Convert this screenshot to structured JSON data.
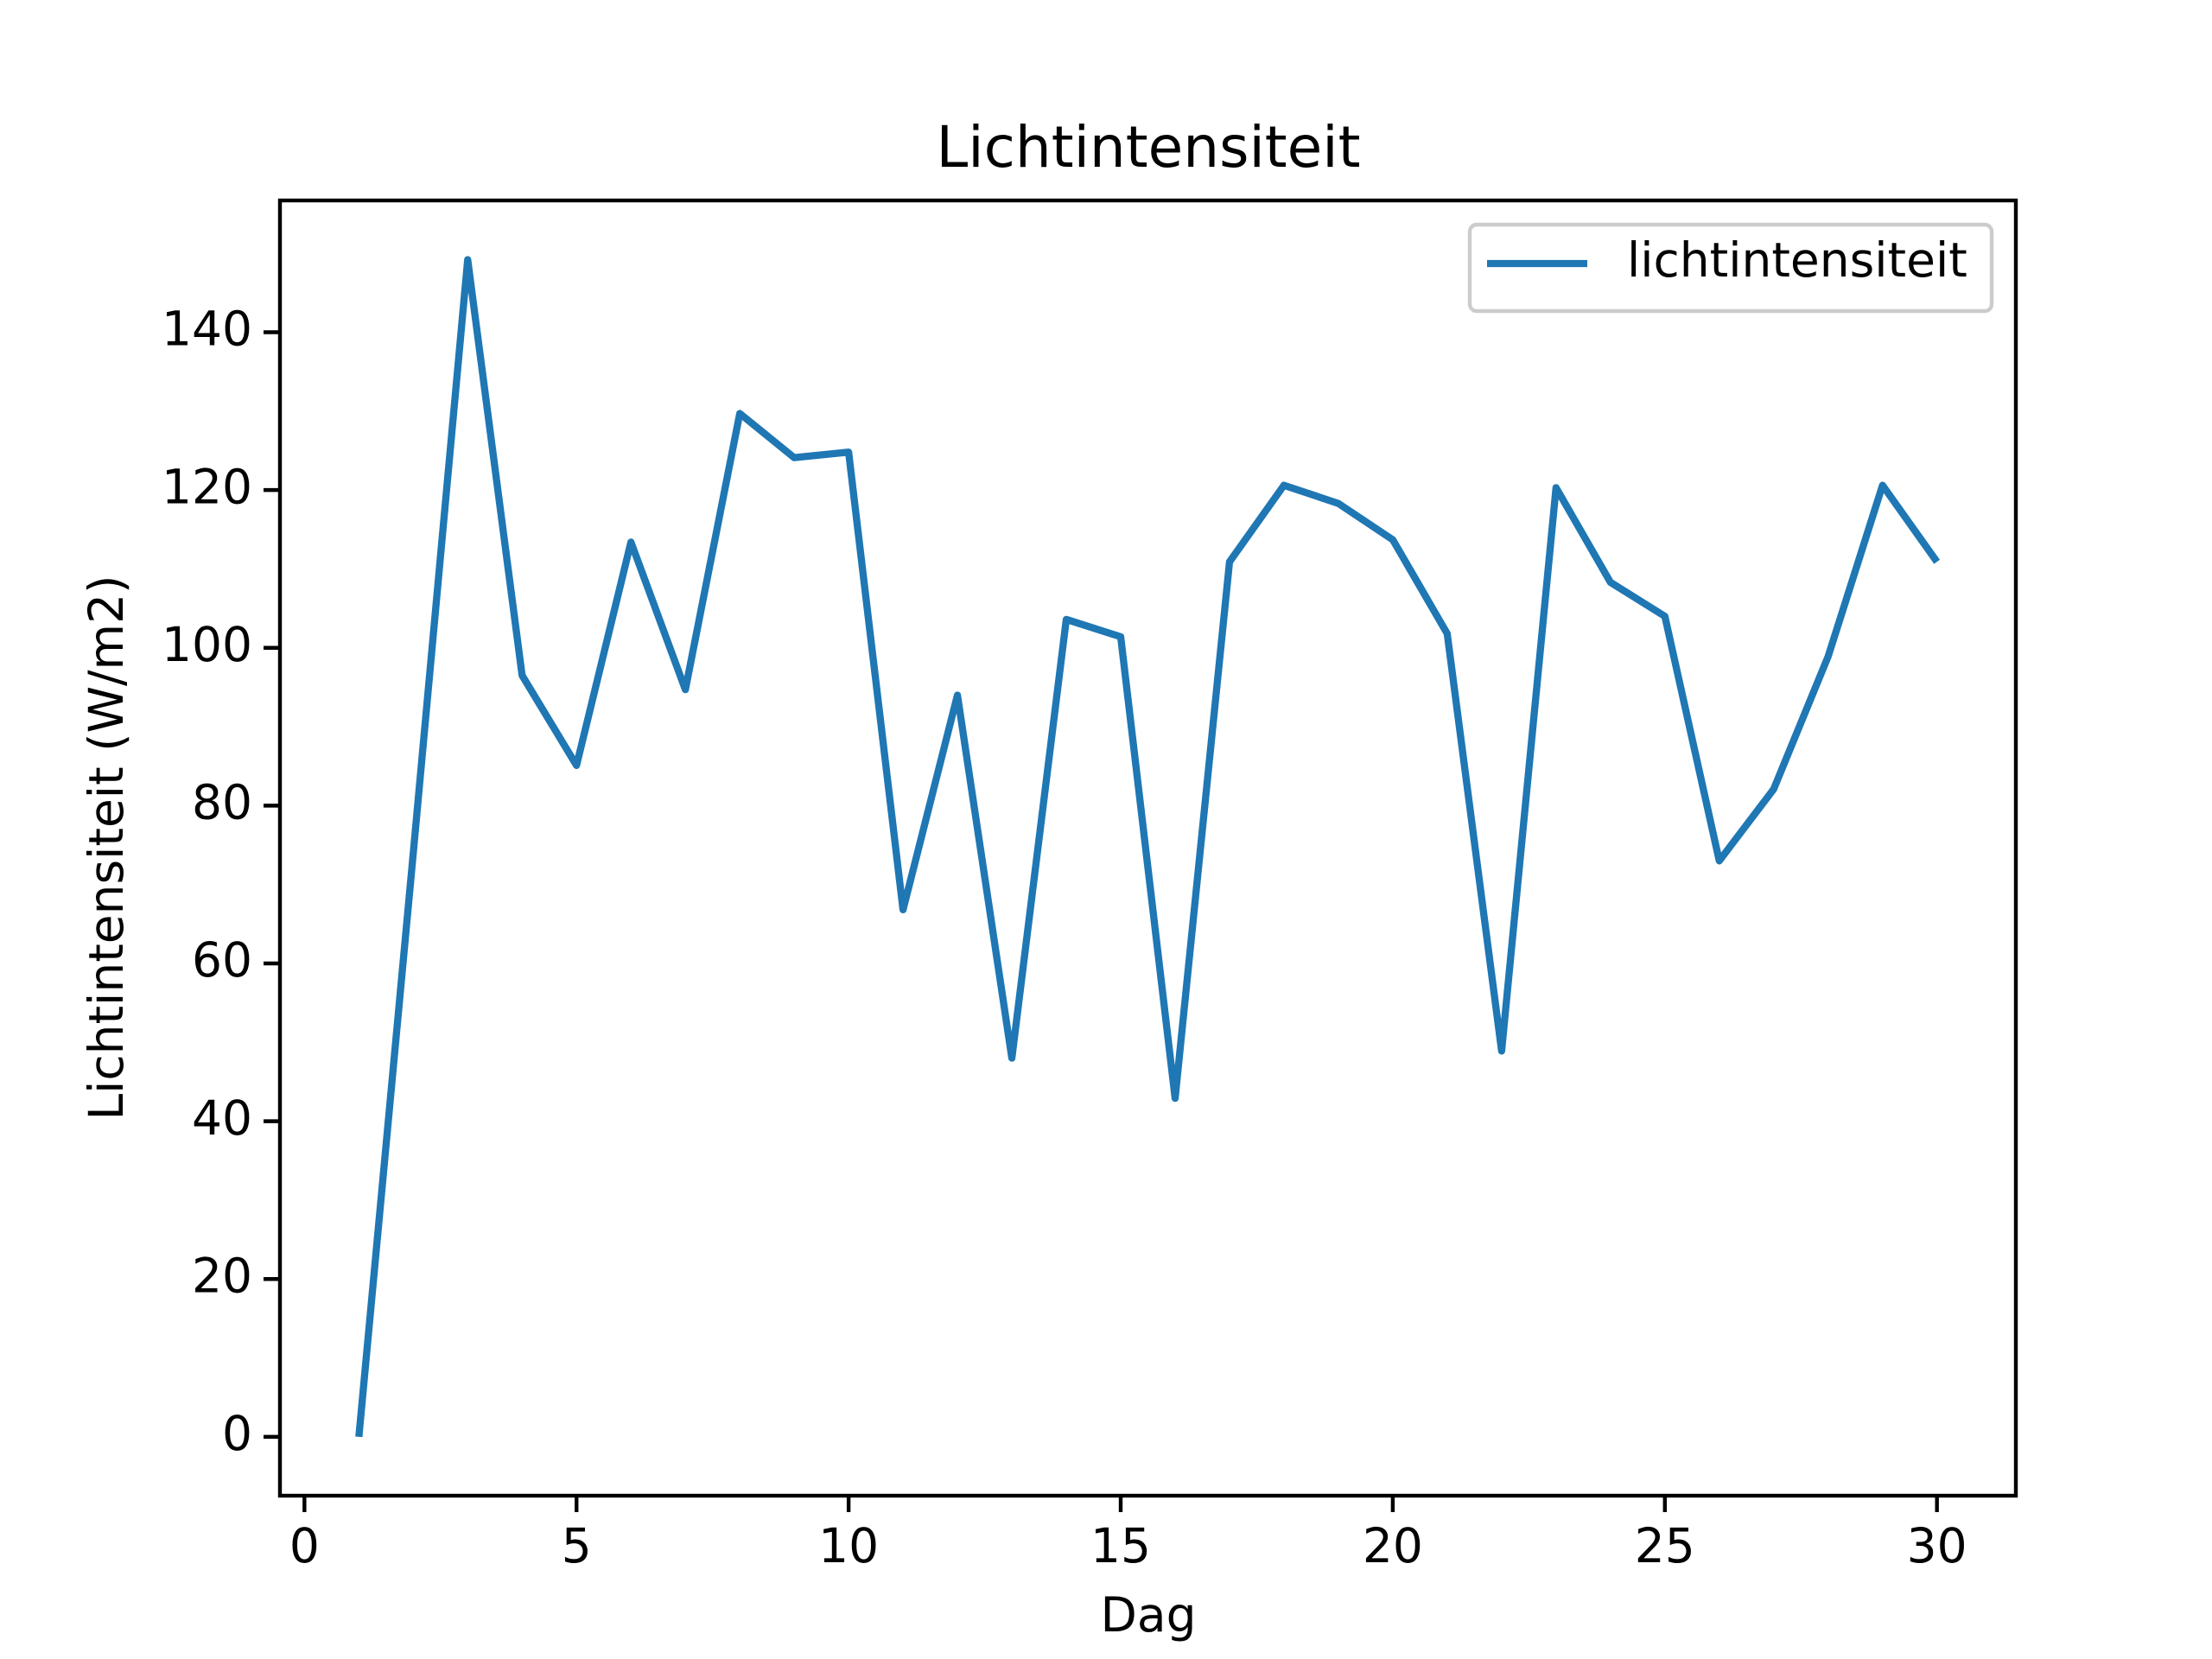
{
  "chart_data": {
    "type": "line",
    "title": "Lichtintensiteit",
    "x_label": "Dag",
    "y_label": "Lichtintensiteit (W/m2)",
    "x": [
      1,
      2,
      3,
      4,
      5,
      6,
      7,
      8,
      9,
      10,
      11,
      12,
      13,
      14,
      15,
      16,
      17,
      18,
      19,
      20,
      21,
      22,
      23,
      24,
      25,
      26,
      27,
      28,
      29,
      30
    ],
    "series": [
      {
        "name": "lichtintensiteit",
        "color": "#1f77b4",
        "values": [
          0,
          74,
          149.2,
          96.5,
          85.1,
          113.4,
          94.7,
          129.7,
          124.1,
          124.8,
          66.8,
          94.0,
          48.0,
          103.6,
          101.4,
          42.9,
          110.9,
          120.6,
          118.3,
          113.7,
          101.8,
          48.9,
          120.3,
          108.3,
          104.0,
          73.0,
          82.1,
          98.9,
          120.6,
          110.9
        ]
      }
    ],
    "xlim": [
      -0.45,
      31.45
    ],
    "xticks": [
      0,
      5,
      10,
      15,
      20,
      25,
      30
    ],
    "ylim": [
      -7.46,
      156.7
    ],
    "yticks": [
      0,
      20,
      40,
      60,
      80,
      100,
      120,
      140
    ],
    "legend": "upper right",
    "grid": false
  }
}
